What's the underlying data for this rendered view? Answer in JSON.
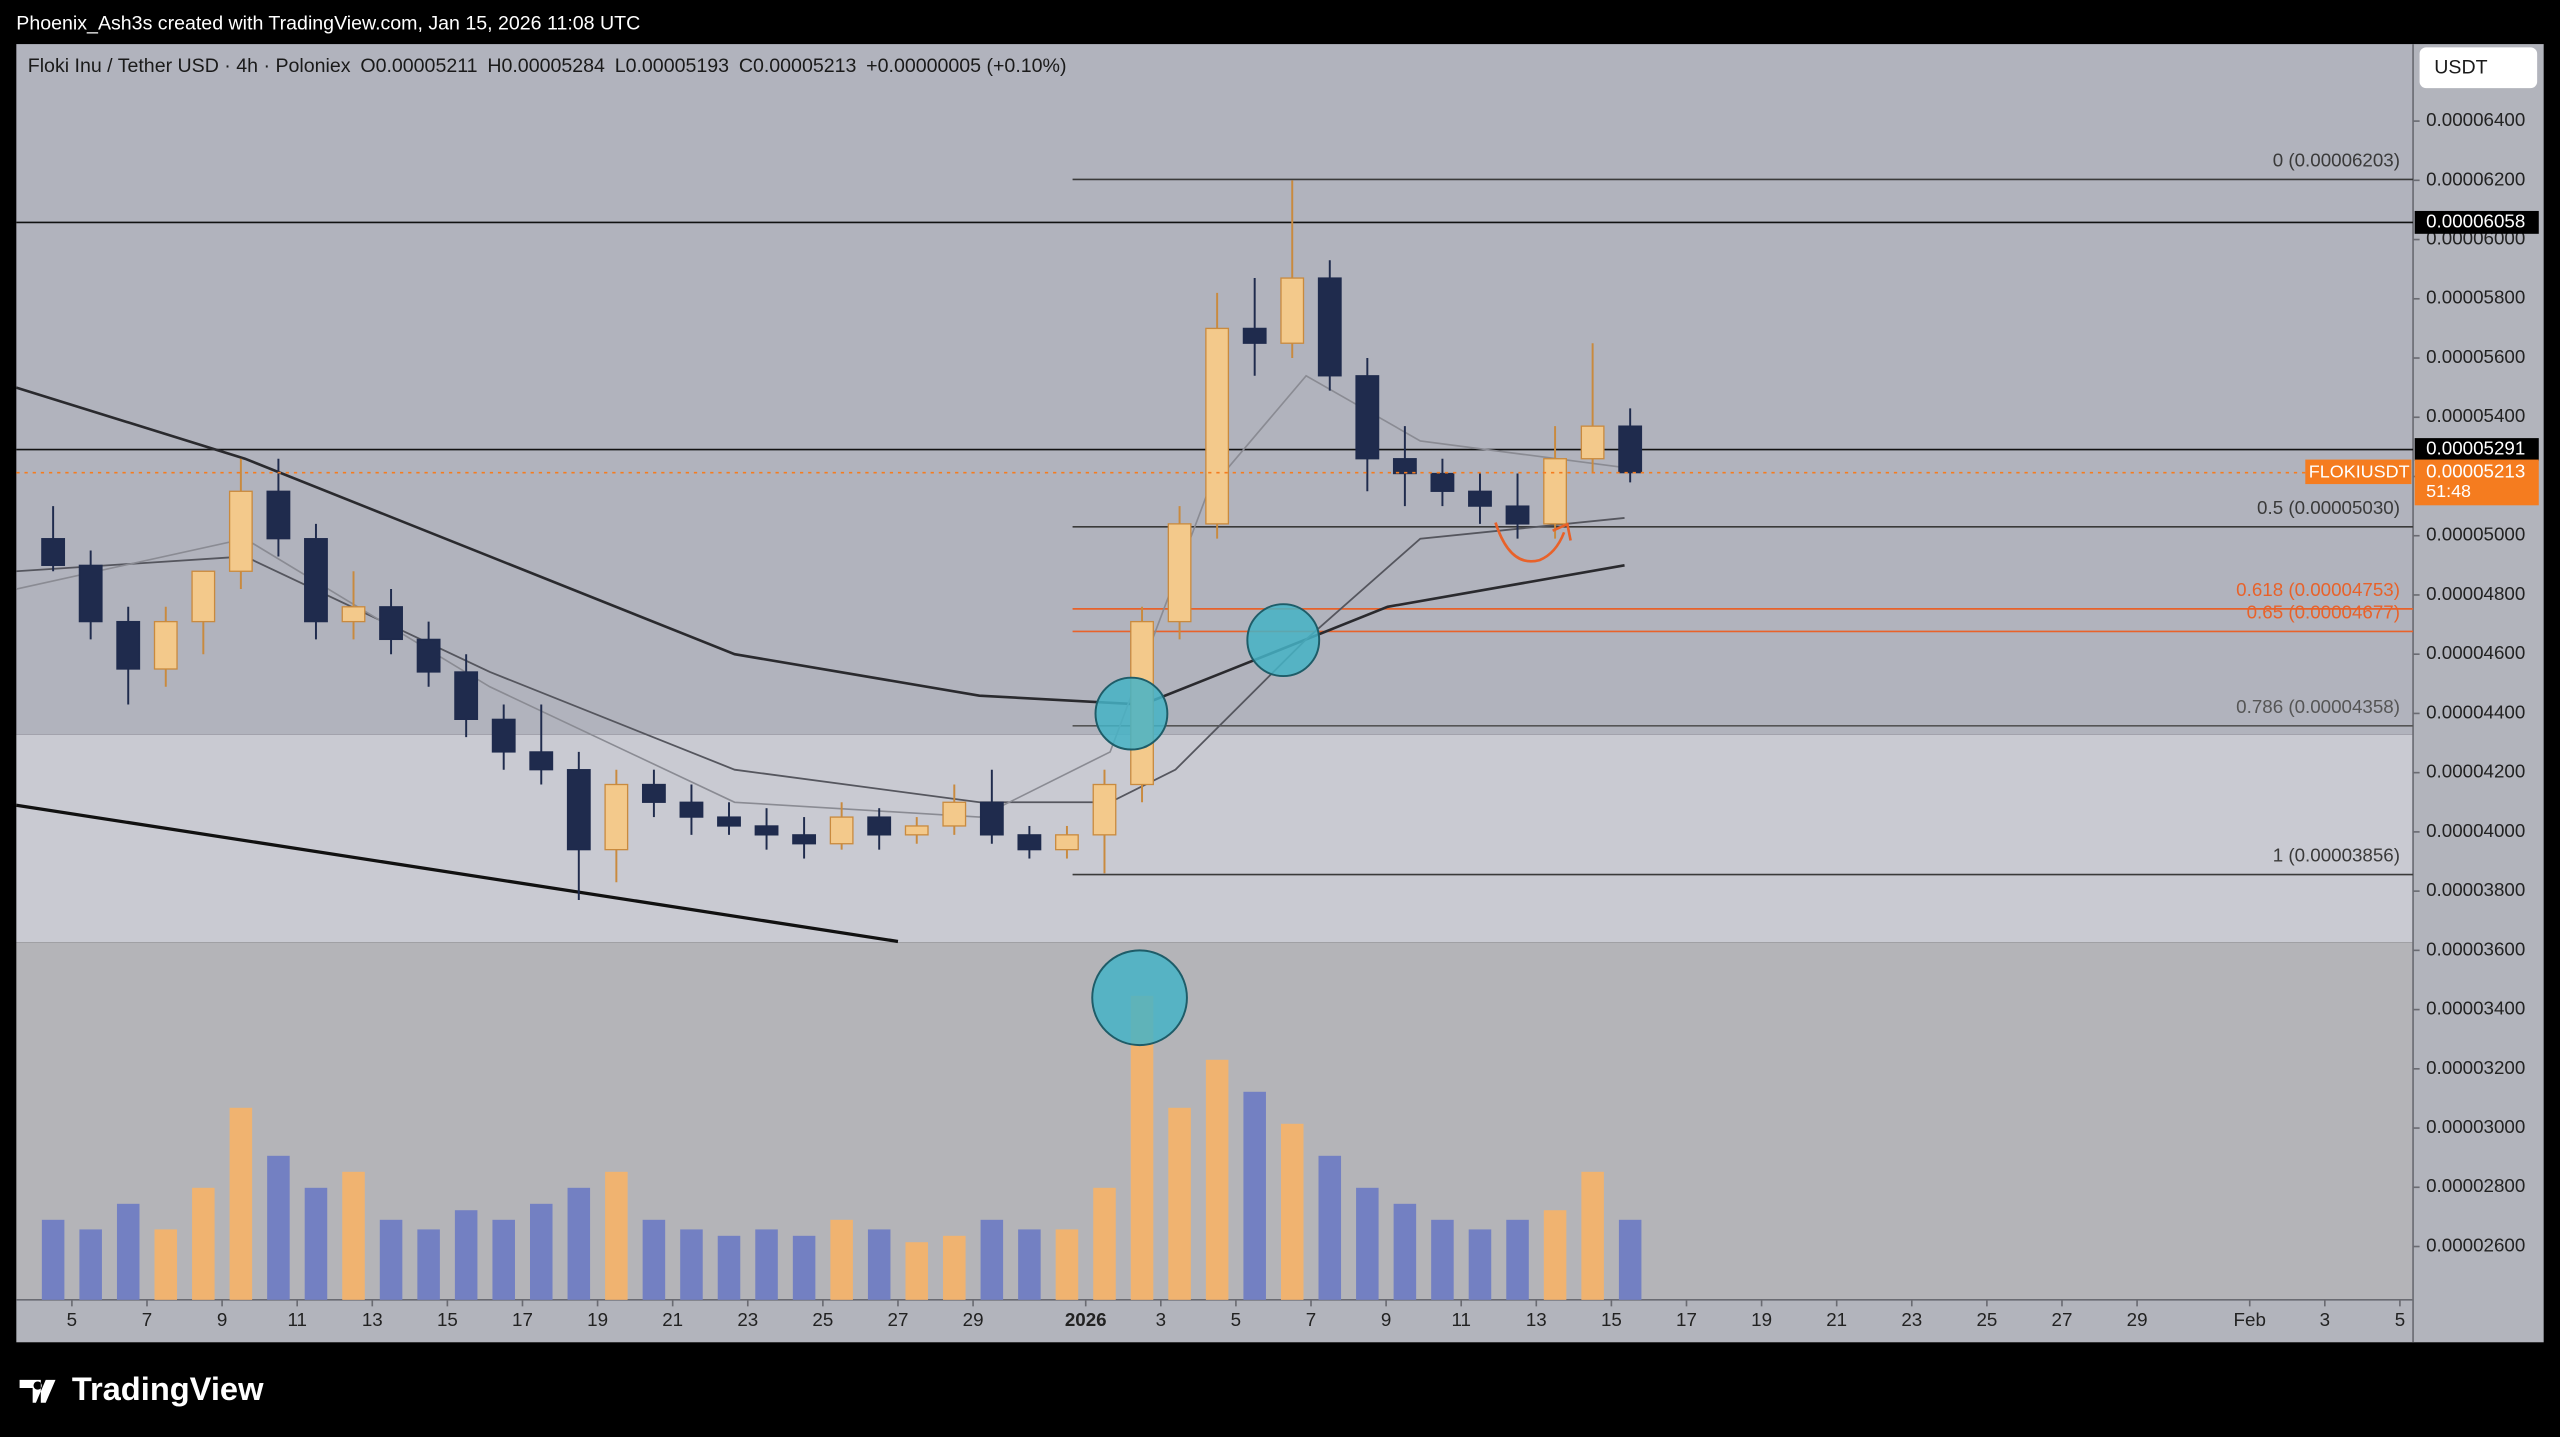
{
  "header": {
    "watermark": "Phoenix_Ash3s created with TradingView.com, Jan 15, 2026 11:08 UTC",
    "symbol": "Floki Inu / Tether USD · 4h · Poloniex",
    "open": "O0.00005211",
    "high": "H0.00005284",
    "low": "L0.00005193",
    "close": "C0.00005213",
    "change": "+0.00000005 (+0.10%)",
    "currency": "USDT",
    "brand": "TradingView"
  },
  "chart_data": {
    "type": "candlestick",
    "x": [
      4.5,
      5.5,
      6.5,
      7.5,
      8.5,
      9.5,
      10.5,
      11.5,
      12.5,
      13.5,
      14.5,
      15.5,
      16.5,
      17.5,
      18.5,
      19.5,
      20.5,
      21.5,
      22.5,
      23.5,
      24.5,
      25.5,
      26.5,
      27.5,
      28.5,
      29.5,
      30.5,
      31.5,
      32.5,
      33.5,
      34.5,
      35.5,
      36.5,
      37.5,
      38.5,
      39.5,
      40.5,
      41.5,
      42.5,
      43.5,
      44.5,
      45.5,
      46.5
    ],
    "open": [
      4.99e-05,
      4.9e-05,
      4.71e-05,
      4.55e-05,
      4.71e-05,
      4.88e-05,
      5.15e-05,
      4.99e-05,
      4.71e-05,
      4.76e-05,
      4.65e-05,
      4.54e-05,
      4.38e-05,
      4.27e-05,
      4.21e-05,
      3.94e-05,
      4.16e-05,
      4.1e-05,
      4.05e-05,
      4.02e-05,
      3.99e-05,
      3.96e-05,
      4.05e-05,
      3.99e-05,
      4.02e-05,
      4.1e-05,
      3.99e-05,
      3.94e-05,
      3.99e-05,
      4.16e-05,
      4.71e-05,
      5.04e-05,
      5.7e-05,
      5.65e-05,
      5.87e-05,
      5.54e-05,
      5.26e-05,
      5.21e-05,
      5.15e-05,
      5.1e-05,
      5.04e-05,
      5.26e-05,
      5.37e-05
    ],
    "high": [
      5.1e-05,
      4.95e-05,
      4.76e-05,
      4.76e-05,
      4.88e-05,
      5.26e-05,
      5.26e-05,
      5.04e-05,
      4.88e-05,
      4.82e-05,
      4.71e-05,
      4.6e-05,
      4.43e-05,
      4.43e-05,
      4.27e-05,
      4.21e-05,
      4.21e-05,
      4.16e-05,
      4.1e-05,
      4.08e-05,
      4.05e-05,
      4.1e-05,
      4.08e-05,
      4.05e-05,
      4.16e-05,
      4.21e-05,
      4.02e-05,
      4.02e-05,
      4.21e-05,
      4.76e-05,
      5.1e-05,
      5.82e-05,
      5.87e-05,
      6.2e-05,
      5.93e-05,
      5.6e-05,
      5.37e-05,
      5.26e-05,
      5.21e-05,
      5.21e-05,
      5.37e-05,
      5.65e-05,
      5.43e-05
    ],
    "low": [
      4.88e-05,
      4.65e-05,
      4.43e-05,
      4.49e-05,
      4.6e-05,
      4.82e-05,
      4.93e-05,
      4.65e-05,
      4.65e-05,
      4.6e-05,
      4.49e-05,
      4.32e-05,
      4.21e-05,
      4.16e-05,
      3.77e-05,
      3.83e-05,
      4.05e-05,
      3.99e-05,
      3.99e-05,
      3.94e-05,
      3.91e-05,
      3.94e-05,
      3.94e-05,
      3.96e-05,
      3.99e-05,
      3.96e-05,
      3.91e-05,
      3.91e-05,
      3.86e-05,
      4.1e-05,
      4.65e-05,
      4.99e-05,
      5.54e-05,
      5.6e-05,
      5.49e-05,
      5.15e-05,
      5.1e-05,
      5.1e-05,
      5.04e-05,
      4.99e-05,
      4.99e-05,
      5.21e-05,
      5.18e-05
    ],
    "close": [
      4.9e-05,
      4.71e-05,
      4.55e-05,
      4.71e-05,
      4.88e-05,
      5.15e-05,
      4.99e-05,
      4.71e-05,
      4.76e-05,
      4.65e-05,
      4.54e-05,
      4.38e-05,
      4.27e-05,
      4.21e-05,
      3.94e-05,
      4.16e-05,
      4.1e-05,
      4.05e-05,
      4.02e-05,
      3.99e-05,
      3.96e-05,
      4.05e-05,
      3.99e-05,
      4.02e-05,
      4.1e-05,
      3.99e-05,
      3.94e-05,
      3.99e-05,
      4.16e-05,
      4.71e-05,
      5.04e-05,
      5.7e-05,
      5.65e-05,
      5.87e-05,
      5.54e-05,
      5.26e-05,
      5.21e-05,
      5.15e-05,
      5.1e-05,
      5.04e-05,
      5.26e-05,
      5.37e-05,
      5.213e-05
    ],
    "volume": [
      25,
      22,
      30,
      22,
      35,
      60,
      45,
      35,
      40,
      25,
      22,
      28,
      25,
      30,
      35,
      40,
      25,
      22,
      20,
      22,
      20,
      25,
      22,
      18,
      20,
      25,
      22,
      22,
      35,
      95,
      60,
      75,
      65,
      55,
      45,
      35,
      30,
      25,
      22,
      25,
      28,
      40,
      25
    ],
    "volume_ylim": [
      0,
      100
    ],
    "up_color": "#f3c98b",
    "down_color": "#1f2b4d",
    "up_volume_color": "#f0b370",
    "down_volume_color": "#7380c2",
    "xlim": [
      3.52,
      67.35
    ],
    "xticks": [
      5,
      7,
      9,
      11,
      13,
      15,
      17,
      19,
      21,
      23,
      25,
      27,
      29,
      {
        "value": 32,
        "label": "2026"
      },
      {
        "value": 34,
        "label": "3"
      },
      {
        "value": 36,
        "label": "5"
      },
      {
        "value": 38,
        "label": "7"
      },
      {
        "value": 40,
        "label": "9"
      },
      {
        "value": 42,
        "label": "11"
      },
      {
        "value": 44,
        "label": "13"
      },
      {
        "value": 46,
        "label": "15"
      },
      {
        "value": 48,
        "label": "17"
      },
      {
        "value": 50,
        "label": "19"
      },
      {
        "value": 52,
        "label": "21"
      },
      {
        "value": 54,
        "label": "23"
      },
      {
        "value": 56,
        "label": "25"
      },
      {
        "value": 58,
        "label": "27"
      },
      {
        "value": 60,
        "label": "29"
      },
      {
        "value": 63,
        "label": "Feb"
      },
      {
        "value": 65,
        "label": "3"
      },
      {
        "value": 67,
        "label": "5"
      }
    ],
    "ylim": [
      2.42e-05,
      6.66e-05
    ],
    "yticks": [
      {
        "value": 2.6e-05,
        "label": "0.00002600"
      },
      {
        "value": 2.8e-05,
        "label": "0.00002800"
      },
      {
        "value": 3e-05,
        "label": "0.00003000"
      },
      {
        "value": 3.2e-05,
        "label": "0.00003200"
      },
      {
        "value": 3.4e-05,
        "label": "0.00003400"
      },
      {
        "value": 3.6e-05,
        "label": "0.00003600"
      },
      {
        "value": 3.8e-05,
        "label": "0.00003800"
      },
      {
        "value": 4e-05,
        "label": "0.00004000"
      },
      {
        "value": 4.2e-05,
        "label": "0.00004200"
      },
      {
        "value": 4.4e-05,
        "label": "0.00004400"
      },
      {
        "value": 4.6e-05,
        "label": "0.00004600"
      },
      {
        "value": 4.8e-05,
        "label": "0.00004800"
      },
      {
        "value": 5e-05,
        "label": "0.00005000"
      },
      {
        "value": 5.2e-05,
        "label": "0.00005200"
      },
      {
        "value": 5.4e-05,
        "label": "0.00005400"
      },
      {
        "value": 5.6e-05,
        "label": "0.00005600"
      },
      {
        "value": 5.8e-05,
        "label": "0.00005800"
      },
      {
        "value": 6e-05,
        "label": "0.00006000"
      },
      {
        "value": 6.2e-05,
        "label": "0.00006200"
      },
      {
        "value": 6.4e-05,
        "label": "0.00006400"
      }
    ],
    "grid": false,
    "fib_start": 31.65,
    "levels": [
      {
        "label": "0 (0.00006203)",
        "value": 6.203e-05,
        "color": "#3a3a3a"
      },
      {
        "label": "0.5 (0.00005030)",
        "value": 5.03e-05,
        "color": "#3a3a3a"
      },
      {
        "label": "0.618 (0.00004753)",
        "value": 4.753e-05,
        "color": "#e8622a"
      },
      {
        "label": "0.65 (0.00004677)",
        "value": 4.677e-05,
        "color": "#e8622a"
      },
      {
        "label": "0.786 (0.00004358)",
        "value": 4.358e-05,
        "color": "#555555"
      },
      {
        "label": "1 (0.00003856)",
        "value": 3.856e-05,
        "color": "#3a3a3a"
      }
    ],
    "price_lines": [
      6.058e-05,
      5.291e-05
    ],
    "current_price": {
      "value": 5.213e-05,
      "symbol": "FLOKIUSDT",
      "countdown": "51:48",
      "color": "#f57c1f"
    },
    "trendline": {
      "x": [
        3.52,
        27
      ],
      "values": [
        4.09e-05,
        3.63e-05
      ]
    },
    "moving_averages": [
      {
        "color": "#2a2a2e",
        "width": 1.6,
        "x": [
          3.52,
          9.61,
          16.13,
          22.65,
          29.17,
          33.52,
          35.7,
          40.04,
          46.35
        ],
        "values": [
          5.5e-05,
          5.26e-05,
          4.93e-05,
          4.6e-05,
          4.46e-05,
          4.43e-05,
          4.54e-05,
          4.76e-05,
          4.9e-05
        ]
      },
      {
        "color": "#55565e",
        "width": 1.1,
        "x": [
          3.52,
          9.61,
          16.13,
          22.65,
          29.17,
          32.65,
          34.39,
          37.87,
          40.91,
          46.35
        ],
        "values": [
          4.88e-05,
          4.93e-05,
          4.54e-05,
          4.21e-05,
          4.1e-05,
          4.1e-05,
          4.21e-05,
          4.65e-05,
          4.99e-05,
          5.06e-05
        ]
      },
      {
        "color": "#8a8b93",
        "width": 1,
        "x": [
          3.52,
          9.61,
          16.13,
          22.65,
          29.17,
          32.65,
          35.26,
          37.87,
          40.91,
          46.35
        ],
        "values": [
          4.82e-05,
          4.99e-05,
          4.49e-05,
          4.1e-05,
          4.05e-05,
          4.27e-05,
          5.15e-05,
          5.54e-05,
          5.32e-05,
          5.23e-05
        ]
      }
    ]
  }
}
